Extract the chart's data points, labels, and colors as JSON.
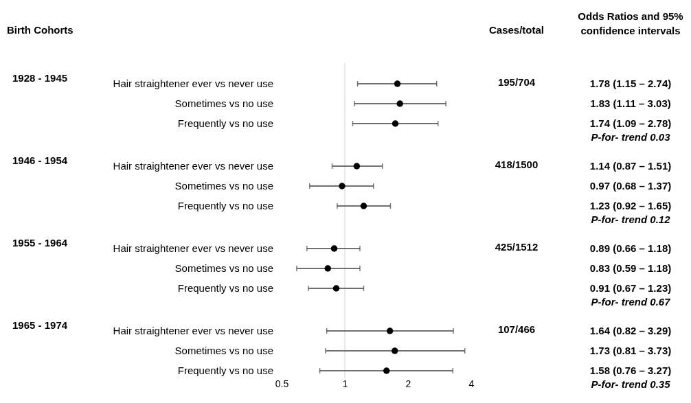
{
  "chart_data": {
    "type": "scatter",
    "orientation": "horizontal",
    "log": "x",
    "grid": false,
    "marker": "circle",
    "categories": [
      "Hair straightener ever vs never use",
      "Sometimes vs no use",
      "Frequently vs no use",
      "Hair straightener ever vs never use",
      "Sometimes vs no use",
      "Frequently vs no use",
      "Hair straightener ever vs never use",
      "Sometimes vs no use",
      "Frequently vs no use",
      "Hair straightener ever vs never use",
      "Sometimes vs no use",
      "Frequently vs no use"
    ],
    "series": [
      {
        "color": "#000000",
        "values": [
          1.78,
          1.83,
          1.74,
          1.14,
          0.97,
          1.23,
          0.89,
          0.83,
          0.91,
          1.64,
          1.73,
          1.58
        ],
        "errors": [
          [
            1.15,
            2.74
          ],
          [
            1.11,
            3.03
          ],
          [
            1.09,
            2.78
          ],
          [
            0.87,
            1.51
          ],
          [
            0.68,
            1.37
          ],
          [
            0.92,
            1.65
          ],
          [
            0.66,
            1.18
          ],
          [
            0.59,
            1.18
          ],
          [
            0.67,
            1.23
          ],
          [
            0.82,
            3.29
          ],
          [
            0.81,
            3.73
          ],
          [
            0.76,
            3.27
          ]
        ],
        "value_labels": [
          "1.78 (1.15 – 2.74)",
          "1.83 (1.11 – 3.03)",
          "1.74 (1.09 – 2.78)",
          "1.14 (0.87 – 1.51)",
          "0.97 (0.68 – 1.37)",
          "1.23 (0.92 – 1.65)",
          "0.89 (0.66 – 1.18)",
          "0.83 (0.59 – 1.18)",
          "0.91 (0.67 – 1.23)",
          "1.64 (0.82 – 3.29)",
          "1.73 (0.81 – 3.73)",
          "1.58 (0.76 – 3.27)"
        ]
      }
    ],
    "xlim": [
      0.5,
      4
    ],
    "xticks": [
      0.5,
      1,
      2,
      4
    ],
    "ref_lines": [
      {
        "axis": "x",
        "value": 1,
        "color": "#d9d9d9"
      }
    ],
    "annotations": [
      "Birth Cohorts",
      "Cases/total",
      "Odds Ratios and 95%\nconfidence intervals",
      "1928 - 1945",
      "195/704",
      "P-for- trend 0.03",
      "1946 - 1954",
      "418/1500",
      "P-for- trend 0.12",
      "1955 - 1964",
      "425/1512",
      "P-for- trend 0.67",
      "1965 - 1974",
      "107/466",
      "P-for- trend 0.35"
    ]
  }
}
